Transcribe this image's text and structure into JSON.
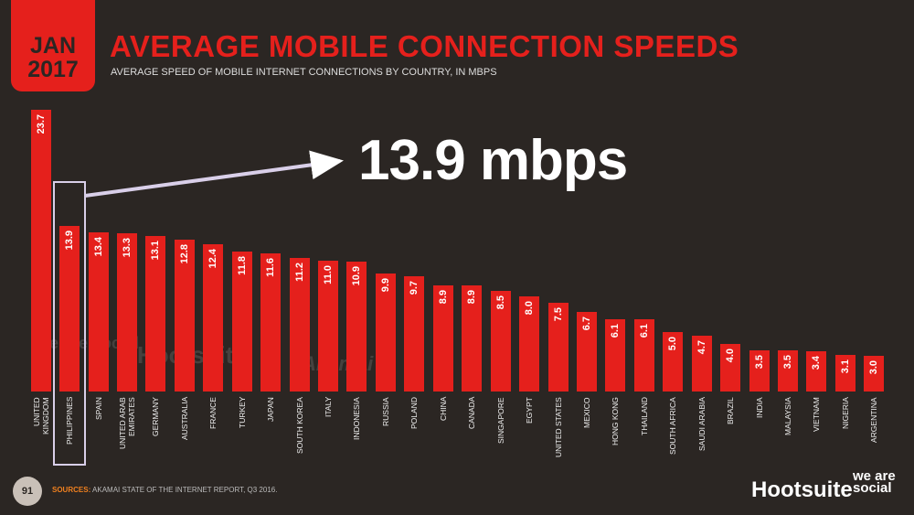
{
  "header": {
    "date_month": "JAN",
    "date_year": "2017"
  },
  "chart_data": {
    "type": "bar",
    "title": "AVERAGE MOBILE CONNECTION SPEEDS",
    "subtitle": "AVERAGE SPEED OF MOBILE INTERNET CONNECTIONS BY COUNTRY, IN MBPS",
    "categories": [
      "UNITED KINGDOM",
      "PHILIPPINES",
      "SPAIN",
      "UNITED ARAB EMIRATES",
      "GERMANY",
      "AUSTRALIA",
      "FRANCE",
      "TURKEY",
      "JAPAN",
      "SOUTH KOREA",
      "ITALY",
      "INDONESIA",
      "RUSSIA",
      "POLAND",
      "CHINA",
      "CANADA",
      "SINGAPORE",
      "EGYPT",
      "UNITED STATES",
      "MEXICO",
      "HONG KONG",
      "THAILAND",
      "SOUTH AFRICA",
      "SAUDI ARABIA",
      "BRAZIL",
      "INDIA",
      "MALAYSIA",
      "VIETNAM",
      "NIGERIA",
      "ARGENTINA"
    ],
    "values": [
      23.7,
      13.9,
      13.4,
      13.3,
      13.1,
      12.8,
      12.4,
      11.8,
      11.6,
      11.2,
      11.0,
      10.9,
      9.9,
      9.7,
      8.9,
      8.9,
      8.5,
      8.0,
      7.5,
      6.7,
      6.1,
      6.1,
      5.0,
      4.7,
      4.0,
      3.5,
      3.5,
      3.4,
      3.1,
      3.0
    ],
    "value_labels": [
      "23.7",
      "13.9",
      "13.4",
      "13.3",
      "13.1",
      "12.8",
      "12.4",
      "11.8",
      "11.6",
      "11.2",
      "11.0",
      "10.9",
      "9.9",
      "9.7",
      "8.9",
      "8.9",
      "8.5",
      "8.0",
      "7.5",
      "6.7",
      "6.1",
      "6.1",
      "5.0",
      "4.7",
      "4.0",
      "3.5",
      "3.5",
      "3.4",
      "3.1",
      "3.0"
    ],
    "color": "#e5201c",
    "annotation": {
      "text": "13.9 mbps",
      "category_index": 1
    }
  },
  "watermarks": [
    "we are social",
    "Hootsuite",
    "Akamai"
  ],
  "footer": {
    "page": "91",
    "sources_label": "SOURCES:",
    "sources_text": "AKAMAI STATE OF THE INTERNET REPORT, Q3 2016.",
    "logo_hootsuite": "Hootsuite",
    "logo_was": "we are social"
  }
}
